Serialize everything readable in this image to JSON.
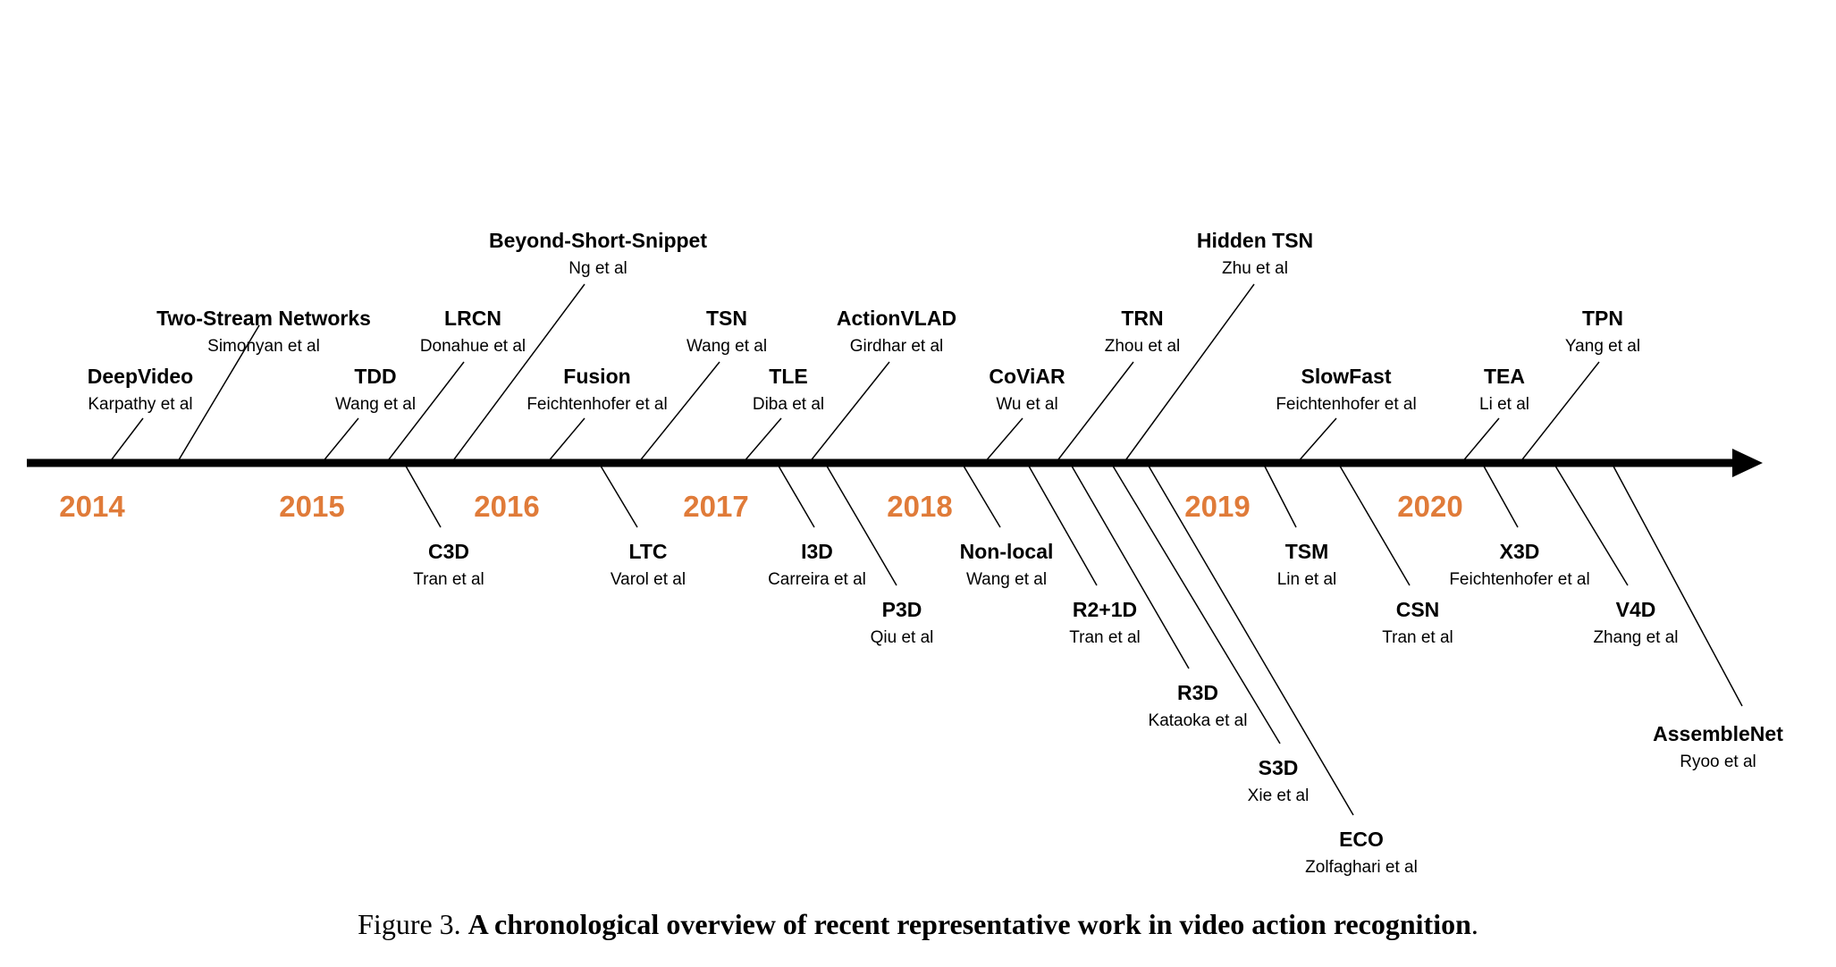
{
  "axis": {
    "year_color": "#E07B39",
    "years": [
      "2014",
      "2015",
      "2016",
      "2017",
      "2018",
      "2019",
      "2020"
    ]
  },
  "works": [
    {
      "name": "DeepVideo",
      "author": "Karpathy et al",
      "side": "above"
    },
    {
      "name": "Two-Stream Networks",
      "author": "Simonyan et al",
      "side": "above"
    },
    {
      "name": "TDD",
      "author": "Wang et al",
      "side": "above"
    },
    {
      "name": "LRCN",
      "author": "Donahue et al",
      "side": "above"
    },
    {
      "name": "Beyond-Short-Snippet",
      "author": "Ng et al",
      "side": "above"
    },
    {
      "name": "Fusion",
      "author": "Feichtenhofer et al",
      "side": "above"
    },
    {
      "name": "TSN",
      "author": "Wang et al",
      "side": "above"
    },
    {
      "name": "TLE",
      "author": "Diba et al",
      "side": "above"
    },
    {
      "name": "ActionVLAD",
      "author": "Girdhar et al",
      "side": "above"
    },
    {
      "name": "CoViAR",
      "author": "Wu et al",
      "side": "above"
    },
    {
      "name": "TRN",
      "author": "Zhou et al",
      "side": "above"
    },
    {
      "name": "Hidden TSN",
      "author": "Zhu et al",
      "side": "above"
    },
    {
      "name": "SlowFast",
      "author": "Feichtenhofer et al",
      "side": "above"
    },
    {
      "name": "TEA",
      "author": "Li et al",
      "side": "above"
    },
    {
      "name": "TPN",
      "author": "Yang et al",
      "side": "above"
    },
    {
      "name": "C3D",
      "author": "Tran et al",
      "side": "below"
    },
    {
      "name": "LTC",
      "author": "Varol et al",
      "side": "below"
    },
    {
      "name": "I3D",
      "author": "Carreira et al",
      "side": "below"
    },
    {
      "name": "P3D",
      "author": "Qiu et al",
      "side": "below"
    },
    {
      "name": "Non-local",
      "author": "Wang et al",
      "side": "below"
    },
    {
      "name": "R2+1D",
      "author": "Tran et al",
      "side": "below"
    },
    {
      "name": "R3D",
      "author": "Kataoka et al",
      "side": "below"
    },
    {
      "name": "S3D",
      "author": "Xie et al",
      "side": "below"
    },
    {
      "name": "ECO",
      "author": "Zolfaghari et al",
      "side": "below"
    },
    {
      "name": "TSM",
      "author": "Lin et al",
      "side": "below"
    },
    {
      "name": "CSN",
      "author": "Tran et al",
      "side": "below"
    },
    {
      "name": "X3D",
      "author": "Feichtenhofer et al",
      "side": "below"
    },
    {
      "name": "V4D",
      "author": "Zhang et al",
      "side": "below"
    },
    {
      "name": "AssembleNet",
      "author": "Ryoo et al",
      "side": "below"
    }
  ],
  "caption": {
    "prefix": "Figure 3.",
    "text": "A chronological overview of recent representative work in video action recognition",
    "suffix": "."
  }
}
